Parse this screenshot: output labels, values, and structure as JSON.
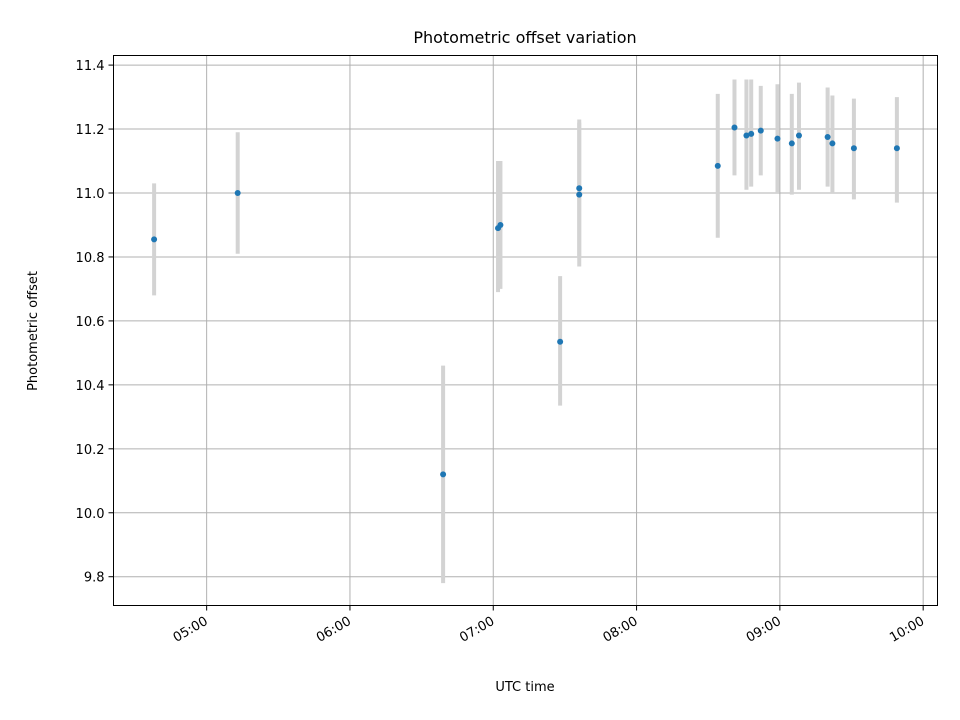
{
  "chart_data": {
    "type": "scatter",
    "title": "Photometric offset variation",
    "xlabel": "UTC time",
    "ylabel": "Photometric offset",
    "xlim": [
      "04:21",
      "10:06"
    ],
    "ylim": [
      9.71,
      11.43
    ],
    "x_ticks": [
      "05:00",
      "06:00",
      "07:00",
      "08:00",
      "09:00",
      "10:00"
    ],
    "y_ticks": [
      "9.8",
      "10.0",
      "10.2",
      "10.4",
      "10.6",
      "10.8",
      "11.0",
      "11.2",
      "11.4"
    ],
    "grid": true,
    "marker_color": "#1f77b4",
    "errorbar_color": "#d3d3d3",
    "points": [
      {
        "time": "04:38",
        "y": 10.855,
        "err_low": 10.68,
        "err_high": 11.03
      },
      {
        "time": "05:13",
        "y": 11.0,
        "err_low": 10.81,
        "err_high": 11.19
      },
      {
        "time": "06:39",
        "y": 10.12,
        "err_low": 9.78,
        "err_high": 10.46
      },
      {
        "time": "07:02",
        "y": 10.89,
        "err_low": 10.69,
        "err_high": 11.1
      },
      {
        "time": "07:03",
        "y": 10.9,
        "err_low": 10.7,
        "err_high": 11.1
      },
      {
        "time": "07:28",
        "y": 10.535,
        "err_low": 10.335,
        "err_high": 10.74
      },
      {
        "time": "07:36",
        "y": 10.995,
        "err_low": 10.77,
        "err_high": 11.22
      },
      {
        "time": "07:36",
        "y": 11.015,
        "err_low": 10.8,
        "err_high": 11.23
      },
      {
        "time": "08:34",
        "y": 11.085,
        "err_low": 10.86,
        "err_high": 11.31
      },
      {
        "time": "08:41",
        "y": 11.205,
        "err_low": 11.055,
        "err_high": 11.355
      },
      {
        "time": "08:46",
        "y": 11.18,
        "err_low": 11.01,
        "err_high": 11.355
      },
      {
        "time": "08:48",
        "y": 11.185,
        "err_low": 11.02,
        "err_high": 11.355
      },
      {
        "time": "08:52",
        "y": 11.195,
        "err_low": 11.055,
        "err_high": 11.335
      },
      {
        "time": "08:59",
        "y": 11.17,
        "err_low": 11.0,
        "err_high": 11.34
      },
      {
        "time": "09:05",
        "y": 11.155,
        "err_low": 10.995,
        "err_high": 11.31
      },
      {
        "time": "09:08",
        "y": 11.18,
        "err_low": 11.01,
        "err_high": 11.345
      },
      {
        "time": "09:20",
        "y": 11.175,
        "err_low": 11.02,
        "err_high": 11.33
      },
      {
        "time": "09:22",
        "y": 11.155,
        "err_low": 11.0,
        "err_high": 11.305
      },
      {
        "time": "09:31",
        "y": 11.14,
        "err_low": 10.98,
        "err_high": 11.295
      },
      {
        "time": "09:49",
        "y": 11.14,
        "err_low": 10.97,
        "err_high": 11.3
      }
    ]
  }
}
